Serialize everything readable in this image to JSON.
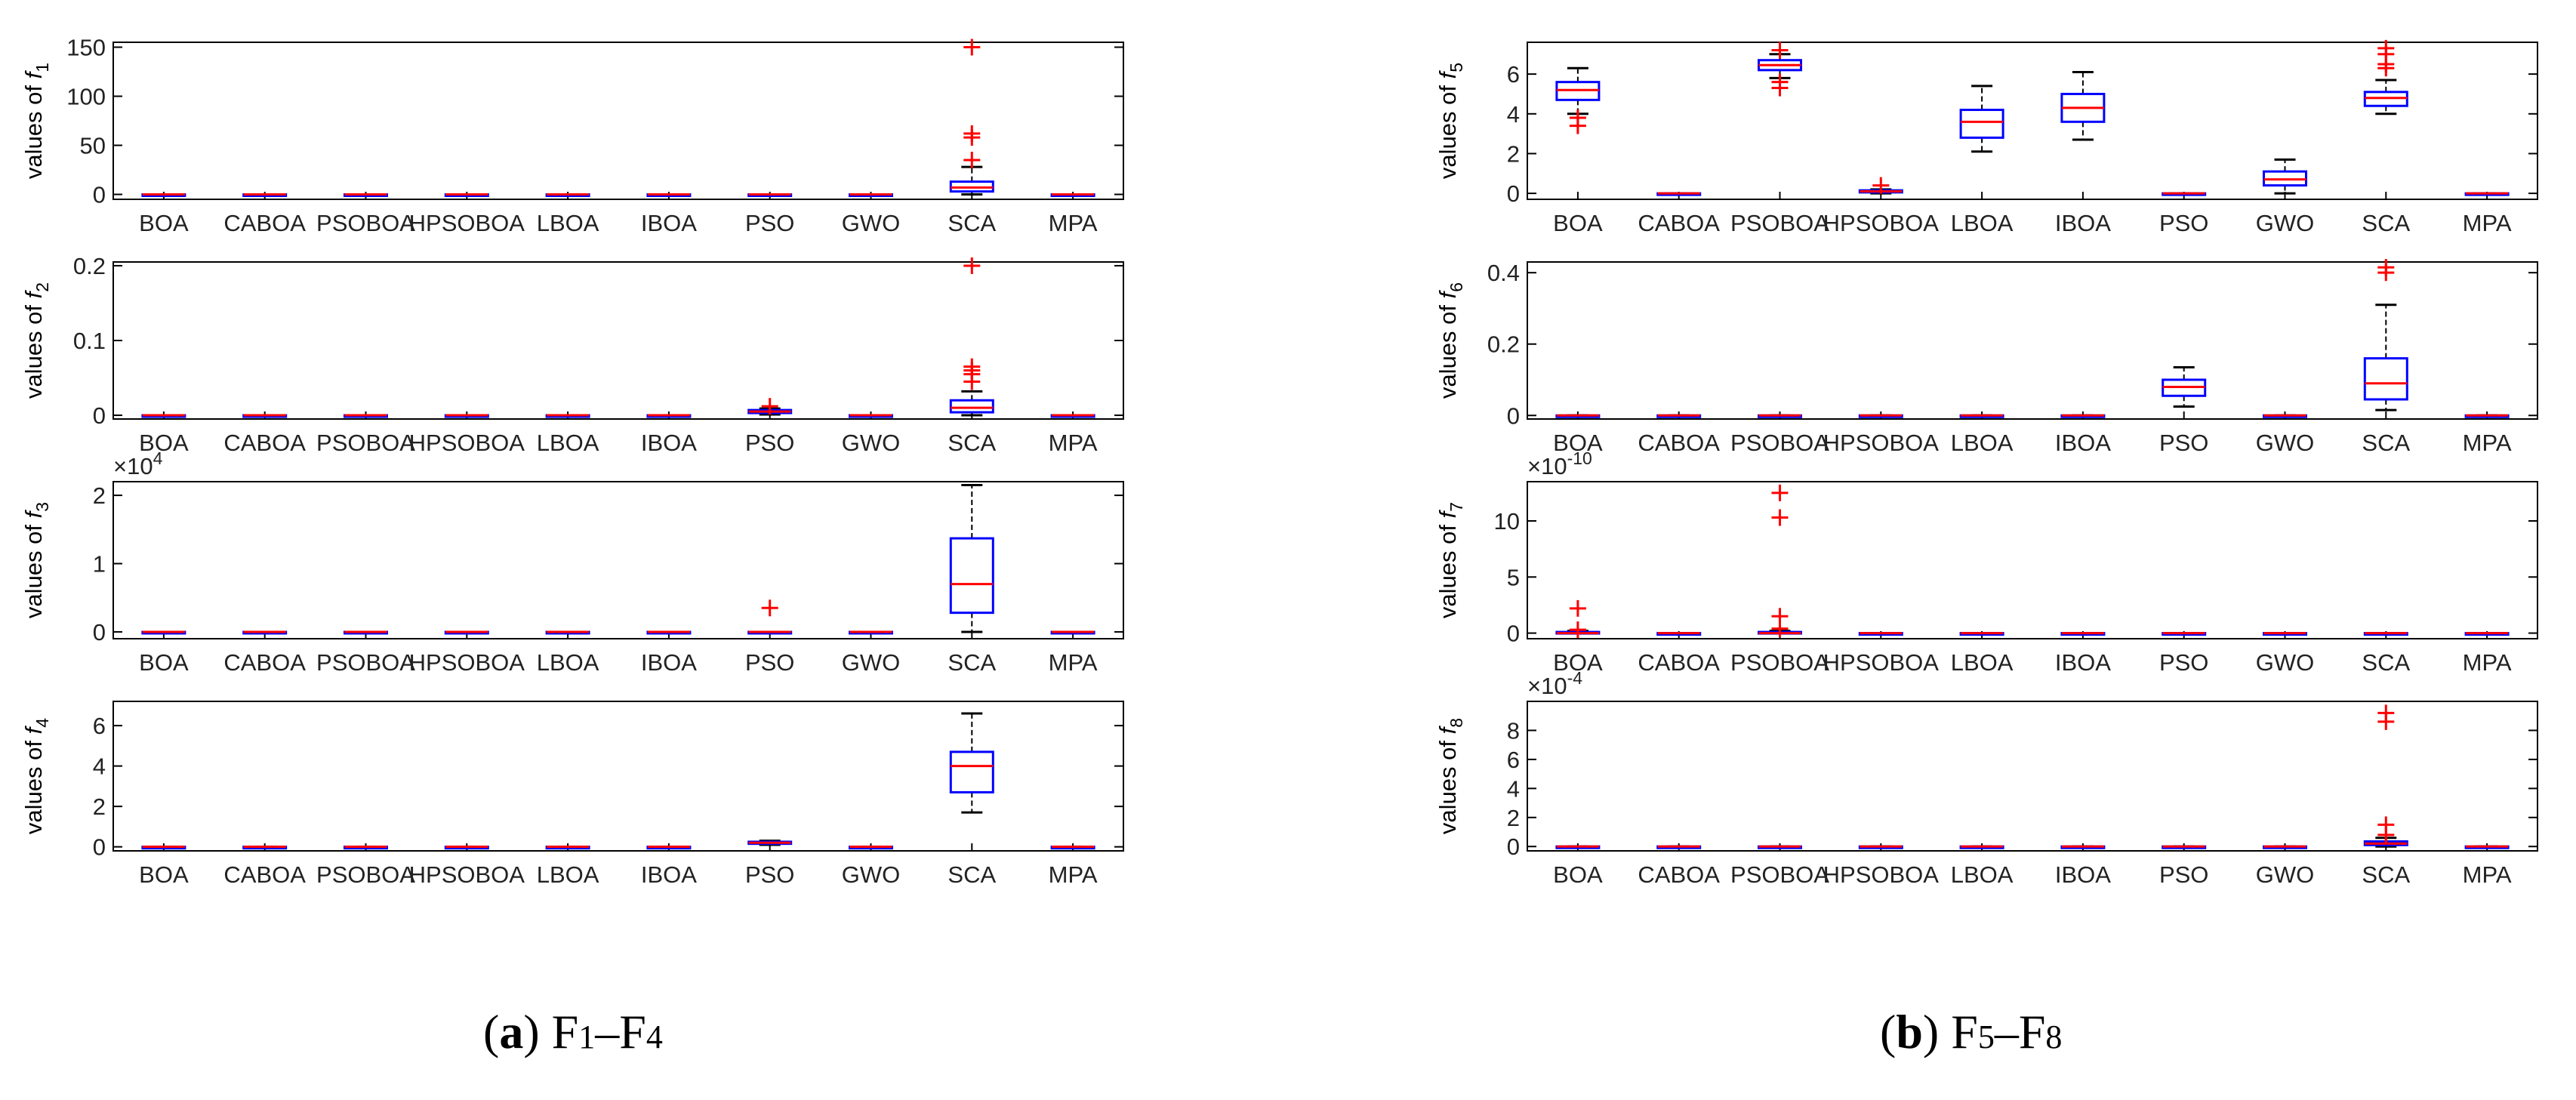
{
  "colors": {
    "box": "#0000ff",
    "median": "#ff0000",
    "outlier": "#ff0000",
    "whisker": "#000000",
    "axis": "#000000"
  },
  "categories": [
    "BOA",
    "CABOA",
    "PSOBOA",
    "HPSOBOA",
    "LBOA",
    "IBOA",
    "PSO",
    "GWO",
    "SCA",
    "MPA"
  ],
  "captions": [
    {
      "paren_open": "(",
      "letter": "a",
      "paren_close": ")",
      "f_start": "F",
      "sub_start": "1",
      "dash": "–",
      "f_end": "F",
      "sub_end": "4"
    },
    {
      "paren_open": "(",
      "letter": "b",
      "paren_close": ")",
      "f_start": "F",
      "sub_start": "5",
      "dash": "–",
      "f_end": "F",
      "sub_end": "8"
    }
  ],
  "chart_data": [
    {
      "type": "box",
      "panel": "a",
      "ylabel": "values of",
      "fname": "f",
      "fsub": "1",
      "exponent": null,
      "ylim": [
        -5,
        155
      ],
      "yticks": [
        0,
        50,
        100,
        150
      ],
      "ytick_labels": [
        "0",
        "50",
        "100",
        "150"
      ],
      "boxes": [
        {
          "q1": 0,
          "med": 0,
          "q3": 0,
          "lo": 0,
          "hi": 0,
          "outliers": []
        },
        {
          "q1": 0,
          "med": 0,
          "q3": 0,
          "lo": 0,
          "hi": 0,
          "outliers": []
        },
        {
          "q1": 0,
          "med": 0,
          "q3": 0,
          "lo": 0,
          "hi": 0,
          "outliers": []
        },
        {
          "q1": 0,
          "med": 0,
          "q3": 0,
          "lo": 0,
          "hi": 0,
          "outliers": []
        },
        {
          "q1": 0,
          "med": 0,
          "q3": 0,
          "lo": 0,
          "hi": 0,
          "outliers": []
        },
        {
          "q1": 0,
          "med": 0,
          "q3": 0,
          "lo": 0,
          "hi": 0,
          "outliers": []
        },
        {
          "q1": 0,
          "med": 0,
          "q3": 0,
          "lo": 0,
          "hi": 0,
          "outliers": []
        },
        {
          "q1": 0,
          "med": 0,
          "q3": 0,
          "lo": 0,
          "hi": 0,
          "outliers": []
        },
        {
          "q1": 3,
          "med": 7,
          "q3": 13,
          "lo": 0,
          "hi": 28,
          "outliers": [
            35,
            58,
            62,
            150
          ]
        },
        {
          "q1": 0,
          "med": 0,
          "q3": 0,
          "lo": 0,
          "hi": 0,
          "outliers": []
        }
      ]
    },
    {
      "type": "box",
      "panel": "a",
      "ylabel": "values of",
      "fname": "f",
      "fsub": "2",
      "exponent": null,
      "ylim": [
        -0.005,
        0.205
      ],
      "yticks": [
        0,
        0.1,
        0.2
      ],
      "ytick_labels": [
        "0",
        "0.1",
        "0.2"
      ],
      "boxes": [
        {
          "q1": 0,
          "med": 0,
          "q3": 0,
          "lo": 0,
          "hi": 0,
          "outliers": []
        },
        {
          "q1": 0,
          "med": 0,
          "q3": 0,
          "lo": 0,
          "hi": 0,
          "outliers": []
        },
        {
          "q1": 0,
          "med": 0,
          "q3": 0,
          "lo": 0,
          "hi": 0,
          "outliers": []
        },
        {
          "q1": 0,
          "med": 0,
          "q3": 0,
          "lo": 0,
          "hi": 0,
          "outliers": []
        },
        {
          "q1": 0,
          "med": 0,
          "q3": 0,
          "lo": 0,
          "hi": 0,
          "outliers": []
        },
        {
          "q1": 0,
          "med": 0,
          "q3": 0,
          "lo": 0,
          "hi": 0,
          "outliers": []
        },
        {
          "q1": 0.003,
          "med": 0.005,
          "q3": 0.007,
          "lo": 0.001,
          "hi": 0.009,
          "outliers": [
            0.012
          ]
        },
        {
          "q1": 0,
          "med": 0,
          "q3": 0,
          "lo": 0,
          "hi": 0,
          "outliers": []
        },
        {
          "q1": 0.004,
          "med": 0.01,
          "q3": 0.02,
          "lo": 0,
          "hi": 0.032,
          "outliers": [
            0.045,
            0.055,
            0.06,
            0.065,
            0.2
          ]
        },
        {
          "q1": 0,
          "med": 0,
          "q3": 0,
          "lo": 0,
          "hi": 0,
          "outliers": []
        }
      ]
    },
    {
      "type": "box",
      "panel": "a",
      "ylabel": "values of",
      "fname": "f",
      "fsub": "3",
      "exponent": "×10",
      "exponent_power": "4",
      "ylim": [
        -0.1,
        2.2
      ],
      "yticks": [
        0,
        1,
        2
      ],
      "ytick_labels": [
        "0",
        "1",
        "2"
      ],
      "boxes": [
        {
          "q1": 0,
          "med": 0,
          "q3": 0,
          "lo": 0,
          "hi": 0,
          "outliers": []
        },
        {
          "q1": 0,
          "med": 0,
          "q3": 0,
          "lo": 0,
          "hi": 0,
          "outliers": []
        },
        {
          "q1": 0,
          "med": 0,
          "q3": 0,
          "lo": 0,
          "hi": 0,
          "outliers": []
        },
        {
          "q1": 0,
          "med": 0,
          "q3": 0,
          "lo": 0,
          "hi": 0,
          "outliers": []
        },
        {
          "q1": 0,
          "med": 0,
          "q3": 0,
          "lo": 0,
          "hi": 0,
          "outliers": []
        },
        {
          "q1": 0,
          "med": 0,
          "q3": 0,
          "lo": 0,
          "hi": 0,
          "outliers": []
        },
        {
          "q1": 0,
          "med": 0,
          "q3": 0,
          "lo": 0,
          "hi": 0,
          "outliers": [
            0.35
          ]
        },
        {
          "q1": 0,
          "med": 0,
          "q3": 0,
          "lo": 0,
          "hi": 0,
          "outliers": []
        },
        {
          "q1": 0.28,
          "med": 0.7,
          "q3": 1.37,
          "lo": 0,
          "hi": 2.15,
          "outliers": []
        },
        {
          "q1": 0,
          "med": 0,
          "q3": 0,
          "lo": 0,
          "hi": 0,
          "outliers": []
        }
      ]
    },
    {
      "type": "box",
      "panel": "a",
      "ylabel": "values of",
      "fname": "f",
      "fsub": "4",
      "exponent": null,
      "ylim": [
        -0.2,
        7.2
      ],
      "yticks": [
        0,
        2,
        4,
        6
      ],
      "ytick_labels": [
        "0",
        "2",
        "4",
        "6"
      ],
      "boxes": [
        {
          "q1": 0,
          "med": 0,
          "q3": 0,
          "lo": 0,
          "hi": 0,
          "outliers": []
        },
        {
          "q1": 0,
          "med": 0,
          "q3": 0,
          "lo": 0,
          "hi": 0,
          "outliers": []
        },
        {
          "q1": 0,
          "med": 0,
          "q3": 0,
          "lo": 0,
          "hi": 0,
          "outliers": []
        },
        {
          "q1": 0,
          "med": 0,
          "q3": 0,
          "lo": 0,
          "hi": 0,
          "outliers": []
        },
        {
          "q1": 0,
          "med": 0,
          "q3": 0,
          "lo": 0,
          "hi": 0,
          "outliers": []
        },
        {
          "q1": 0,
          "med": 0,
          "q3": 0,
          "lo": 0,
          "hi": 0,
          "outliers": []
        },
        {
          "q1": 0.15,
          "med": 0.2,
          "q3": 0.25,
          "lo": 0.1,
          "hi": 0.3,
          "outliers": []
        },
        {
          "q1": 0,
          "med": 0,
          "q3": 0,
          "lo": 0,
          "hi": 0,
          "outliers": []
        },
        {
          "q1": 2.7,
          "med": 4.0,
          "q3": 4.7,
          "lo": 1.7,
          "hi": 6.6,
          "outliers": []
        },
        {
          "q1": 0,
          "med": 0,
          "q3": 0,
          "lo": 0,
          "hi": 0,
          "outliers": []
        }
      ]
    },
    {
      "type": "box",
      "panel": "b",
      "ylabel": "values of",
      "fname": "f",
      "fsub": "5",
      "exponent": null,
      "ylim": [
        -0.3,
        7.6
      ],
      "yticks": [
        0,
        2,
        4,
        6
      ],
      "ytick_labels": [
        "0",
        "2",
        "4",
        "6"
      ],
      "boxes": [
        {
          "q1": 4.7,
          "med": 5.2,
          "q3": 5.6,
          "lo": 4.0,
          "hi": 6.3,
          "outliers": [
            3.4,
            3.8
          ]
        },
        {
          "q1": 0,
          "med": 0,
          "q3": 0,
          "lo": 0,
          "hi": 0,
          "outliers": []
        },
        {
          "q1": 6.2,
          "med": 6.45,
          "q3": 6.7,
          "lo": 5.8,
          "hi": 7.0,
          "outliers": [
            5.3,
            5.6,
            7.2
          ]
        },
        {
          "q1": 0.05,
          "med": 0.1,
          "q3": 0.15,
          "lo": 0,
          "hi": 0.2,
          "outliers": [
            0.4
          ]
        },
        {
          "q1": 2.8,
          "med": 3.6,
          "q3": 4.2,
          "lo": 2.1,
          "hi": 5.4,
          "outliers": []
        },
        {
          "q1": 3.6,
          "med": 4.3,
          "q3": 5.0,
          "lo": 2.7,
          "hi": 6.1,
          "outliers": []
        },
        {
          "q1": 0,
          "med": 0,
          "q3": 0,
          "lo": 0,
          "hi": 0,
          "outliers": []
        },
        {
          "q1": 0.4,
          "med": 0.7,
          "q3": 1.1,
          "lo": 0,
          "hi": 1.7,
          "outliers": []
        },
        {
          "q1": 4.4,
          "med": 4.8,
          "q3": 5.1,
          "lo": 4.0,
          "hi": 5.7,
          "outliers": [
            6.3,
            6.5,
            7.0,
            7.3
          ]
        },
        {
          "q1": 0,
          "med": 0,
          "q3": 0,
          "lo": 0,
          "hi": 0,
          "outliers": []
        }
      ]
    },
    {
      "type": "box",
      "panel": "b",
      "ylabel": "values of",
      "fname": "f",
      "fsub": "6",
      "exponent": null,
      "ylim": [
        -0.01,
        0.43
      ],
      "yticks": [
        0,
        0.2,
        0.4
      ],
      "ytick_labels": [
        "0",
        "0.2",
        "0.4"
      ],
      "boxes": [
        {
          "q1": 0,
          "med": 0,
          "q3": 0,
          "lo": 0,
          "hi": 0,
          "outliers": []
        },
        {
          "q1": 0,
          "med": 0,
          "q3": 0,
          "lo": 0,
          "hi": 0,
          "outliers": []
        },
        {
          "q1": 0,
          "med": 0,
          "q3": 0,
          "lo": 0,
          "hi": 0,
          "outliers": []
        },
        {
          "q1": 0,
          "med": 0,
          "q3": 0,
          "lo": 0,
          "hi": 0,
          "outliers": []
        },
        {
          "q1": 0,
          "med": 0,
          "q3": 0,
          "lo": 0,
          "hi": 0,
          "outliers": []
        },
        {
          "q1": 0,
          "med": 0,
          "q3": 0,
          "lo": 0,
          "hi": 0,
          "outliers": []
        },
        {
          "q1": 0.055,
          "med": 0.08,
          "q3": 0.1,
          "lo": 0.025,
          "hi": 0.135,
          "outliers": []
        },
        {
          "q1": 0,
          "med": 0,
          "q3": 0,
          "lo": 0,
          "hi": 0,
          "outliers": []
        },
        {
          "q1": 0.045,
          "med": 0.09,
          "q3": 0.16,
          "lo": 0.015,
          "hi": 0.31,
          "outliers": [
            0.4,
            0.415
          ]
        },
        {
          "q1": 0,
          "med": 0,
          "q3": 0,
          "lo": 0,
          "hi": 0,
          "outliers": []
        }
      ]
    },
    {
      "type": "box",
      "panel": "b",
      "ylabel": "values of",
      "fname": "f",
      "fsub": "7",
      "exponent": "×10",
      "exponent_power": "-10",
      "ylim": [
        -0.5,
        13.5
      ],
      "yticks": [
        0,
        5,
        10
      ],
      "ytick_labels": [
        "0",
        "5",
        "10"
      ],
      "boxes": [
        {
          "q1": 0,
          "med": 0,
          "q3": 0.1,
          "lo": 0,
          "hi": 0.2,
          "outliers": [
            0.3,
            2.2
          ]
        },
        {
          "q1": 0,
          "med": 0,
          "q3": 0,
          "lo": 0,
          "hi": 0,
          "outliers": []
        },
        {
          "q1": 0,
          "med": 0,
          "q3": 0.1,
          "lo": 0,
          "hi": 0.2,
          "outliers": [
            0.4,
            1.5,
            10.3,
            12.5
          ]
        },
        {
          "q1": 0,
          "med": 0,
          "q3": 0,
          "lo": 0,
          "hi": 0,
          "outliers": []
        },
        {
          "q1": 0,
          "med": 0,
          "q3": 0,
          "lo": 0,
          "hi": 0,
          "outliers": []
        },
        {
          "q1": 0,
          "med": 0,
          "q3": 0,
          "lo": 0,
          "hi": 0,
          "outliers": []
        },
        {
          "q1": 0,
          "med": 0,
          "q3": 0,
          "lo": 0,
          "hi": 0,
          "outliers": []
        },
        {
          "q1": 0,
          "med": 0,
          "q3": 0,
          "lo": 0,
          "hi": 0,
          "outliers": []
        },
        {
          "q1": 0,
          "med": 0,
          "q3": 0,
          "lo": 0,
          "hi": 0,
          "outliers": []
        },
        {
          "q1": 0,
          "med": 0,
          "q3": 0,
          "lo": 0,
          "hi": 0,
          "outliers": []
        }
      ]
    },
    {
      "type": "box",
      "panel": "b",
      "ylabel": "values of",
      "fname": "f",
      "fsub": "8",
      "exponent": "×10",
      "exponent_power": "-4",
      "ylim": [
        -0.3,
        10
      ],
      "yticks": [
        0,
        2,
        4,
        6,
        8
      ],
      "ytick_labels": [
        "0",
        "2",
        "4",
        "6",
        "8"
      ],
      "boxes": [
        {
          "q1": 0,
          "med": 0,
          "q3": 0,
          "lo": 0,
          "hi": 0,
          "outliers": []
        },
        {
          "q1": 0,
          "med": 0,
          "q3": 0,
          "lo": 0,
          "hi": 0,
          "outliers": []
        },
        {
          "q1": 0,
          "med": 0,
          "q3": 0,
          "lo": 0,
          "hi": 0,
          "outliers": []
        },
        {
          "q1": 0,
          "med": 0,
          "q3": 0,
          "lo": 0,
          "hi": 0,
          "outliers": []
        },
        {
          "q1": 0,
          "med": 0,
          "q3": 0,
          "lo": 0,
          "hi": 0,
          "outliers": []
        },
        {
          "q1": 0,
          "med": 0,
          "q3": 0,
          "lo": 0,
          "hi": 0,
          "outliers": []
        },
        {
          "q1": 0,
          "med": 0,
          "q3": 0,
          "lo": 0,
          "hi": 0,
          "outliers": []
        },
        {
          "q1": 0,
          "med": 0,
          "q3": 0,
          "lo": 0,
          "hi": 0,
          "outliers": []
        },
        {
          "q1": 0.1,
          "med": 0.2,
          "q3": 0.35,
          "lo": 0,
          "hi": 0.6,
          "outliers": [
            0.8,
            1.5,
            8.6,
            9.2
          ]
        },
        {
          "q1": 0,
          "med": 0,
          "q3": 0,
          "lo": 0,
          "hi": 0,
          "outliers": []
        }
      ]
    }
  ]
}
